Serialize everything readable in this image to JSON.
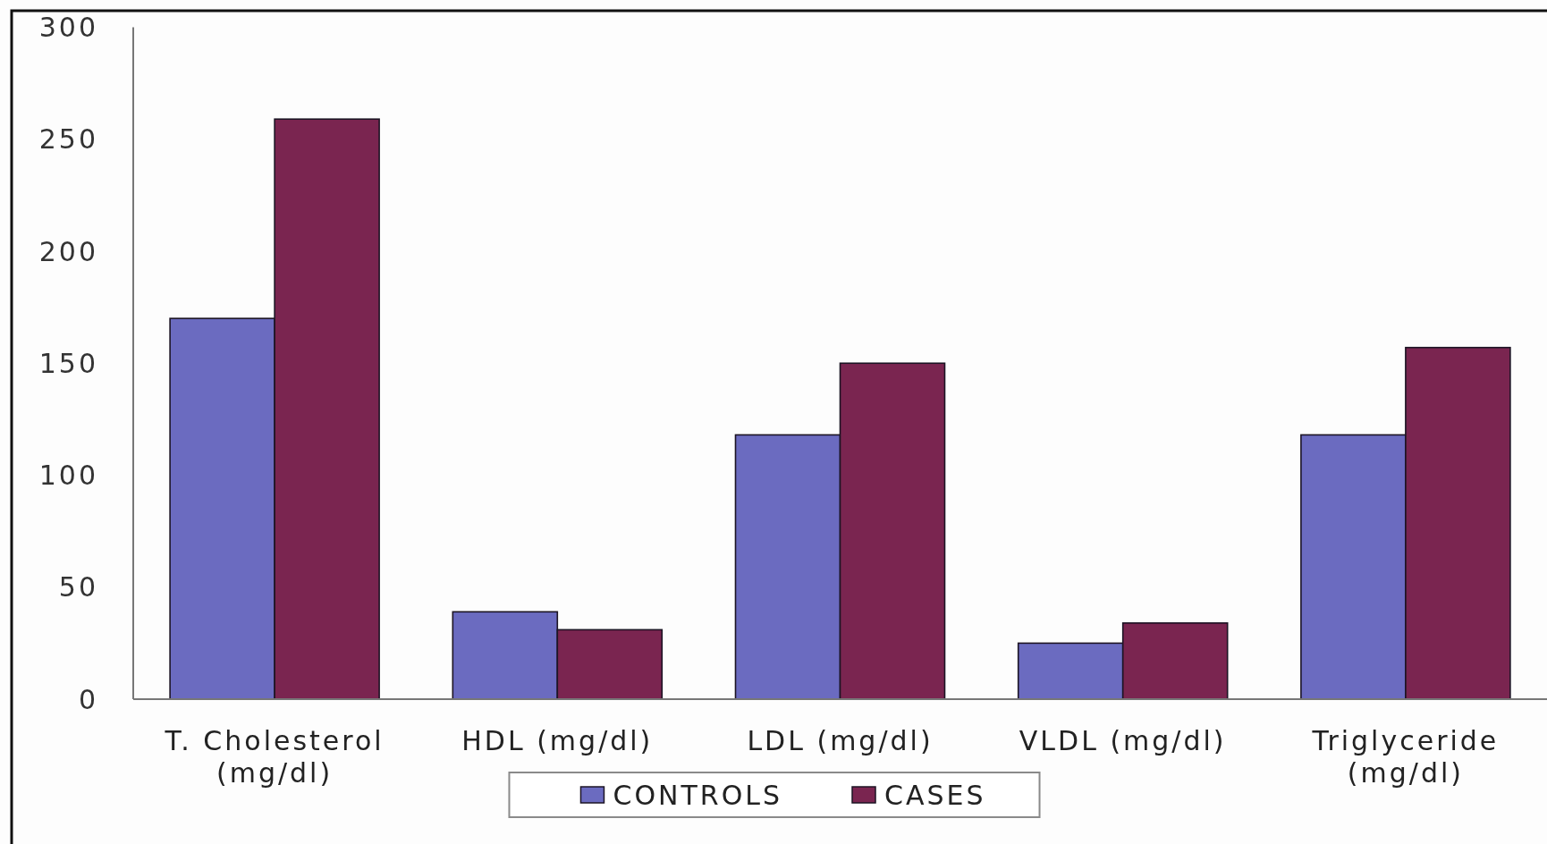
{
  "chart_data": {
    "type": "bar",
    "categories": [
      "T. Cholesterol (mg/dl)",
      "HDL (mg/dl)",
      "LDL (mg/dl)",
      "VLDL (mg/dl)",
      "Triglyceride (mg/dl)"
    ],
    "series": [
      {
        "name": "CONTROLS",
        "color": "#6b6bc0",
        "values": [
          170,
          39,
          118,
          25,
          118
        ]
      },
      {
        "name": "CASES",
        "color": "#7a2550",
        "values": [
          259,
          31,
          150,
          34,
          157
        ]
      }
    ],
    "ylim": [
      0,
      300
    ],
    "yticks": [
      0,
      50,
      100,
      150,
      200,
      250,
      300
    ],
    "legend": "bottom"
  }
}
